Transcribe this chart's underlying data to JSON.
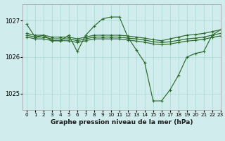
{
  "background_color": "#d0ecec",
  "grid_color": "#b0d8d8",
  "line_color": "#2d6a2d",
  "title": "Graphe pression niveau de la mer (hPa)",
  "xlim": [
    -0.5,
    23
  ],
  "ylim": [
    1024.55,
    1027.45
  ],
  "yticks": [
    1025,
    1026,
    1027
  ],
  "xticks": [
    0,
    1,
    2,
    3,
    4,
    5,
    6,
    7,
    8,
    9,
    10,
    11,
    12,
    13,
    14,
    15,
    16,
    17,
    18,
    19,
    20,
    21,
    22,
    23
  ],
  "series": {
    "main": [
      1026.9,
      1026.55,
      1026.6,
      1026.45,
      1026.45,
      1026.6,
      1026.15,
      1026.6,
      1026.85,
      1027.05,
      1027.1,
      1027.1,
      1026.55,
      1026.2,
      1025.85,
      1024.8,
      1024.8,
      1025.1,
      1025.5,
      1026.0,
      1026.1,
      1026.15,
      1026.6,
      1026.75
    ],
    "line2": [
      1026.65,
      1026.6,
      1026.6,
      1026.55,
      1026.55,
      1026.55,
      1026.5,
      1026.55,
      1026.6,
      1026.6,
      1026.6,
      1026.6,
      1026.58,
      1026.55,
      1026.52,
      1026.48,
      1026.45,
      1026.5,
      1026.55,
      1026.6,
      1026.62,
      1026.65,
      1026.7,
      1026.75
    ],
    "line3": [
      1026.6,
      1026.55,
      1026.55,
      1026.5,
      1026.5,
      1026.5,
      1026.45,
      1026.5,
      1026.55,
      1026.55,
      1026.55,
      1026.55,
      1026.52,
      1026.5,
      1026.47,
      1026.42,
      1026.4,
      1026.42,
      1026.46,
      1026.5,
      1026.52,
      1026.55,
      1026.6,
      1026.65
    ],
    "line4": [
      1026.55,
      1026.5,
      1026.5,
      1026.45,
      1026.45,
      1026.45,
      1026.4,
      1026.45,
      1026.5,
      1026.5,
      1026.5,
      1026.5,
      1026.47,
      1026.44,
      1026.41,
      1026.36,
      1026.34,
      1026.36,
      1026.4,
      1026.44,
      1026.46,
      1026.49,
      1026.54,
      1026.58
    ]
  },
  "marker": "+",
  "markersize": 3.5,
  "linewidth": 0.85
}
